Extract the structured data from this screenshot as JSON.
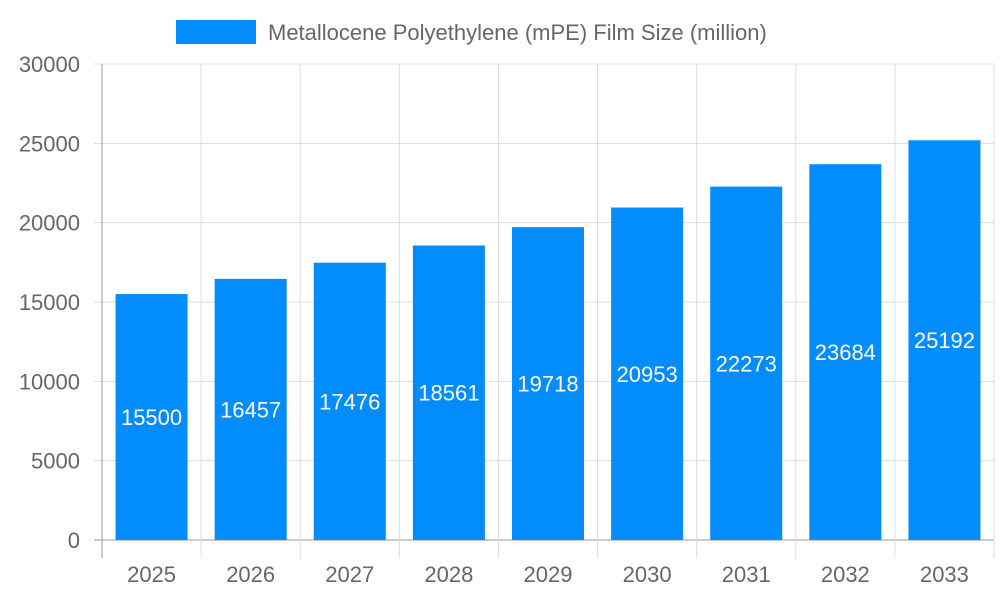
{
  "chart_data": {
    "type": "bar",
    "title": "",
    "xlabel": "",
    "ylabel": "",
    "categories": [
      "2025",
      "2026",
      "2027",
      "2028",
      "2029",
      "2030",
      "2031",
      "2032",
      "2033"
    ],
    "series": [
      {
        "name": "Metallocene Polyethylene (mPE) Film Size (million)",
        "values": [
          15500,
          16457,
          17476,
          18561,
          19718,
          20953,
          22273,
          23684,
          25192
        ],
        "color": "#038cfc"
      }
    ],
    "ylim": [
      0,
      30000
    ],
    "yticks": [
      "0",
      "5000",
      "10000",
      "15000",
      "20000",
      "25000",
      "30000"
    ],
    "grid": true,
    "legend": "top-center",
    "data_labels": true
  }
}
